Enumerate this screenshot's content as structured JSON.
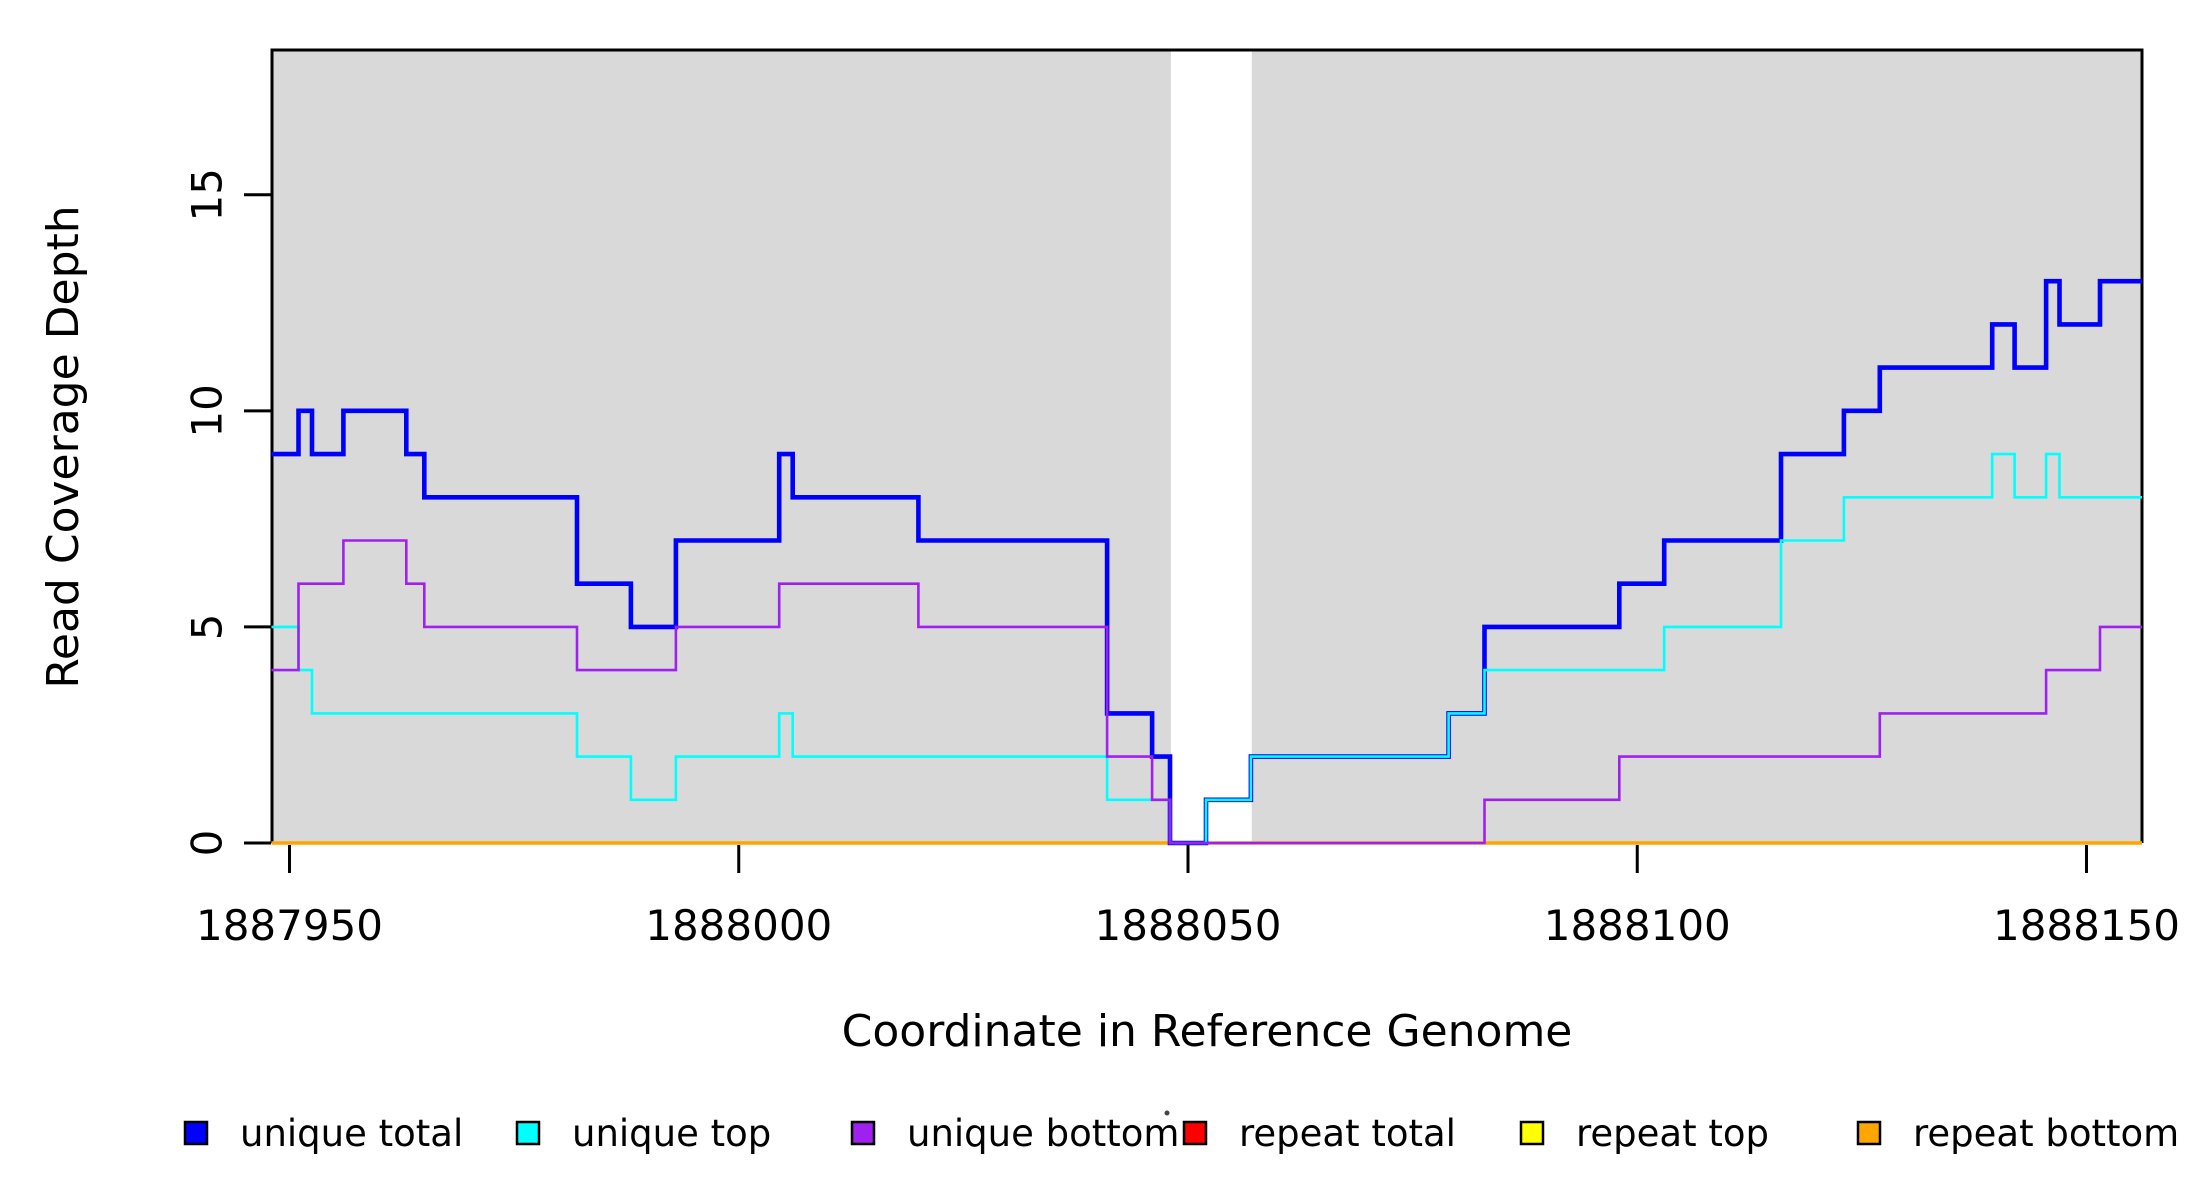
{
  "chart_data": {
    "type": "line",
    "subtype": "step",
    "title": "",
    "xlabel": "Coordinate in Reference Genome",
    "ylabel": "Read Coverage Depth",
    "xlim": [
      1887948,
      1888156.2
    ],
    "ylim": [
      0,
      18.35
    ],
    "grid": false,
    "panel_bg": "#d9d9d9",
    "unshaded_region": {
      "x_start": 1888048.1,
      "x_end": 1888057.1
    },
    "x_ticks": [
      1887950,
      1888000,
      1888050,
      1888100,
      1888150
    ],
    "x_tick_labels": [
      "1887950",
      "1888000",
      "1888050",
      "1888100",
      "1888150"
    ],
    "y_ticks": [
      0,
      5,
      10,
      15
    ],
    "y_tick_labels": [
      "0",
      "5",
      "10",
      "15"
    ],
    "legend_position": "bottom",
    "series": [
      {
        "name": "repeat total",
        "color": "#ff0000",
        "width": 2.8,
        "points": [
          [
            1887948,
            0
          ]
        ]
      },
      {
        "name": "repeat top",
        "color": "#ffff00",
        "width": 2.8,
        "points": [
          [
            1887948,
            0
          ]
        ]
      },
      {
        "name": "repeat bottom",
        "color": "#ffa500",
        "width": 3.6,
        "points": [
          [
            1887948,
            0
          ]
        ]
      },
      {
        "name": "unique total",
        "color": "#0000ff",
        "width": 4.6,
        "points": [
          [
            1887948,
            9
          ],
          [
            1887951,
            10
          ],
          [
            1887952.5,
            9
          ],
          [
            1887956,
            10
          ],
          [
            1887963,
            9
          ],
          [
            1887965,
            8
          ],
          [
            1887982,
            6
          ],
          [
            1887988,
            5
          ],
          [
            1887993,
            7
          ],
          [
            1888004.5,
            9
          ],
          [
            1888006,
            8
          ],
          [
            1888020,
            7
          ],
          [
            1888041,
            3
          ],
          [
            1888046,
            2
          ],
          [
            1888048,
            0
          ],
          [
            1888052,
            1
          ],
          [
            1888057,
            2
          ],
          [
            1888079,
            3
          ],
          [
            1888083,
            5
          ],
          [
            1888098,
            6
          ],
          [
            1888103,
            7
          ],
          [
            1888116,
            9
          ],
          [
            1888123,
            10
          ],
          [
            1888127,
            11
          ],
          [
            1888139.5,
            12
          ],
          [
            1888142,
            11
          ],
          [
            1888145.5,
            13
          ],
          [
            1888147,
            12
          ],
          [
            1888151.5,
            13
          ]
        ]
      },
      {
        "name": "unique top",
        "color": "#00ffff",
        "width": 2.6,
        "points": [
          [
            1887948,
            5
          ],
          [
            1887951,
            4
          ],
          [
            1887952.5,
            3
          ],
          [
            1887982,
            2
          ],
          [
            1887988,
            1
          ],
          [
            1887993,
            2
          ],
          [
            1888004.5,
            3
          ],
          [
            1888006,
            2
          ],
          [
            1888041,
            1
          ],
          [
            1888048,
            0
          ],
          [
            1888052,
            1
          ],
          [
            1888057,
            2
          ],
          [
            1888079,
            3
          ],
          [
            1888083,
            4
          ],
          [
            1888103,
            5
          ],
          [
            1888116,
            7
          ],
          [
            1888123,
            8
          ],
          [
            1888139.5,
            9
          ],
          [
            1888142,
            8
          ],
          [
            1888145.5,
            9
          ],
          [
            1888147,
            8
          ]
        ]
      },
      {
        "name": "unique bottom",
        "color": "#a020f0",
        "width": 2.6,
        "points": [
          [
            1887948,
            4
          ],
          [
            1887951,
            6
          ],
          [
            1887956,
            7
          ],
          [
            1887963,
            6
          ],
          [
            1887965,
            5
          ],
          [
            1887982,
            4
          ],
          [
            1887993,
            5
          ],
          [
            1888004.5,
            6
          ],
          [
            1888020,
            5
          ],
          [
            1888041,
            2
          ],
          [
            1888046,
            1
          ],
          [
            1888048,
            0
          ],
          [
            1888083,
            1
          ],
          [
            1888098,
            2
          ],
          [
            1888127,
            3
          ],
          [
            1888145.5,
            4
          ],
          [
            1888151.5,
            5
          ]
        ]
      }
    ],
    "draw_order": [
      "repeat total",
      "repeat top",
      "repeat bottom",
      "unique total",
      "unique top",
      "unique bottom"
    ]
  },
  "legend": {
    "items": [
      {
        "label": "unique total",
        "color": "#0000ff"
      },
      {
        "label": "unique top",
        "color": "#00ffff"
      },
      {
        "label": "unique bottom",
        "color": "#a020f0"
      },
      {
        "label": "repeat total",
        "color": "#ff0000"
      },
      {
        "label": "repeat top",
        "color": "#ffff00"
      },
      {
        "label": "repeat bottom",
        "color": "#ffa500"
      }
    ],
    "stray_mark": "·"
  }
}
